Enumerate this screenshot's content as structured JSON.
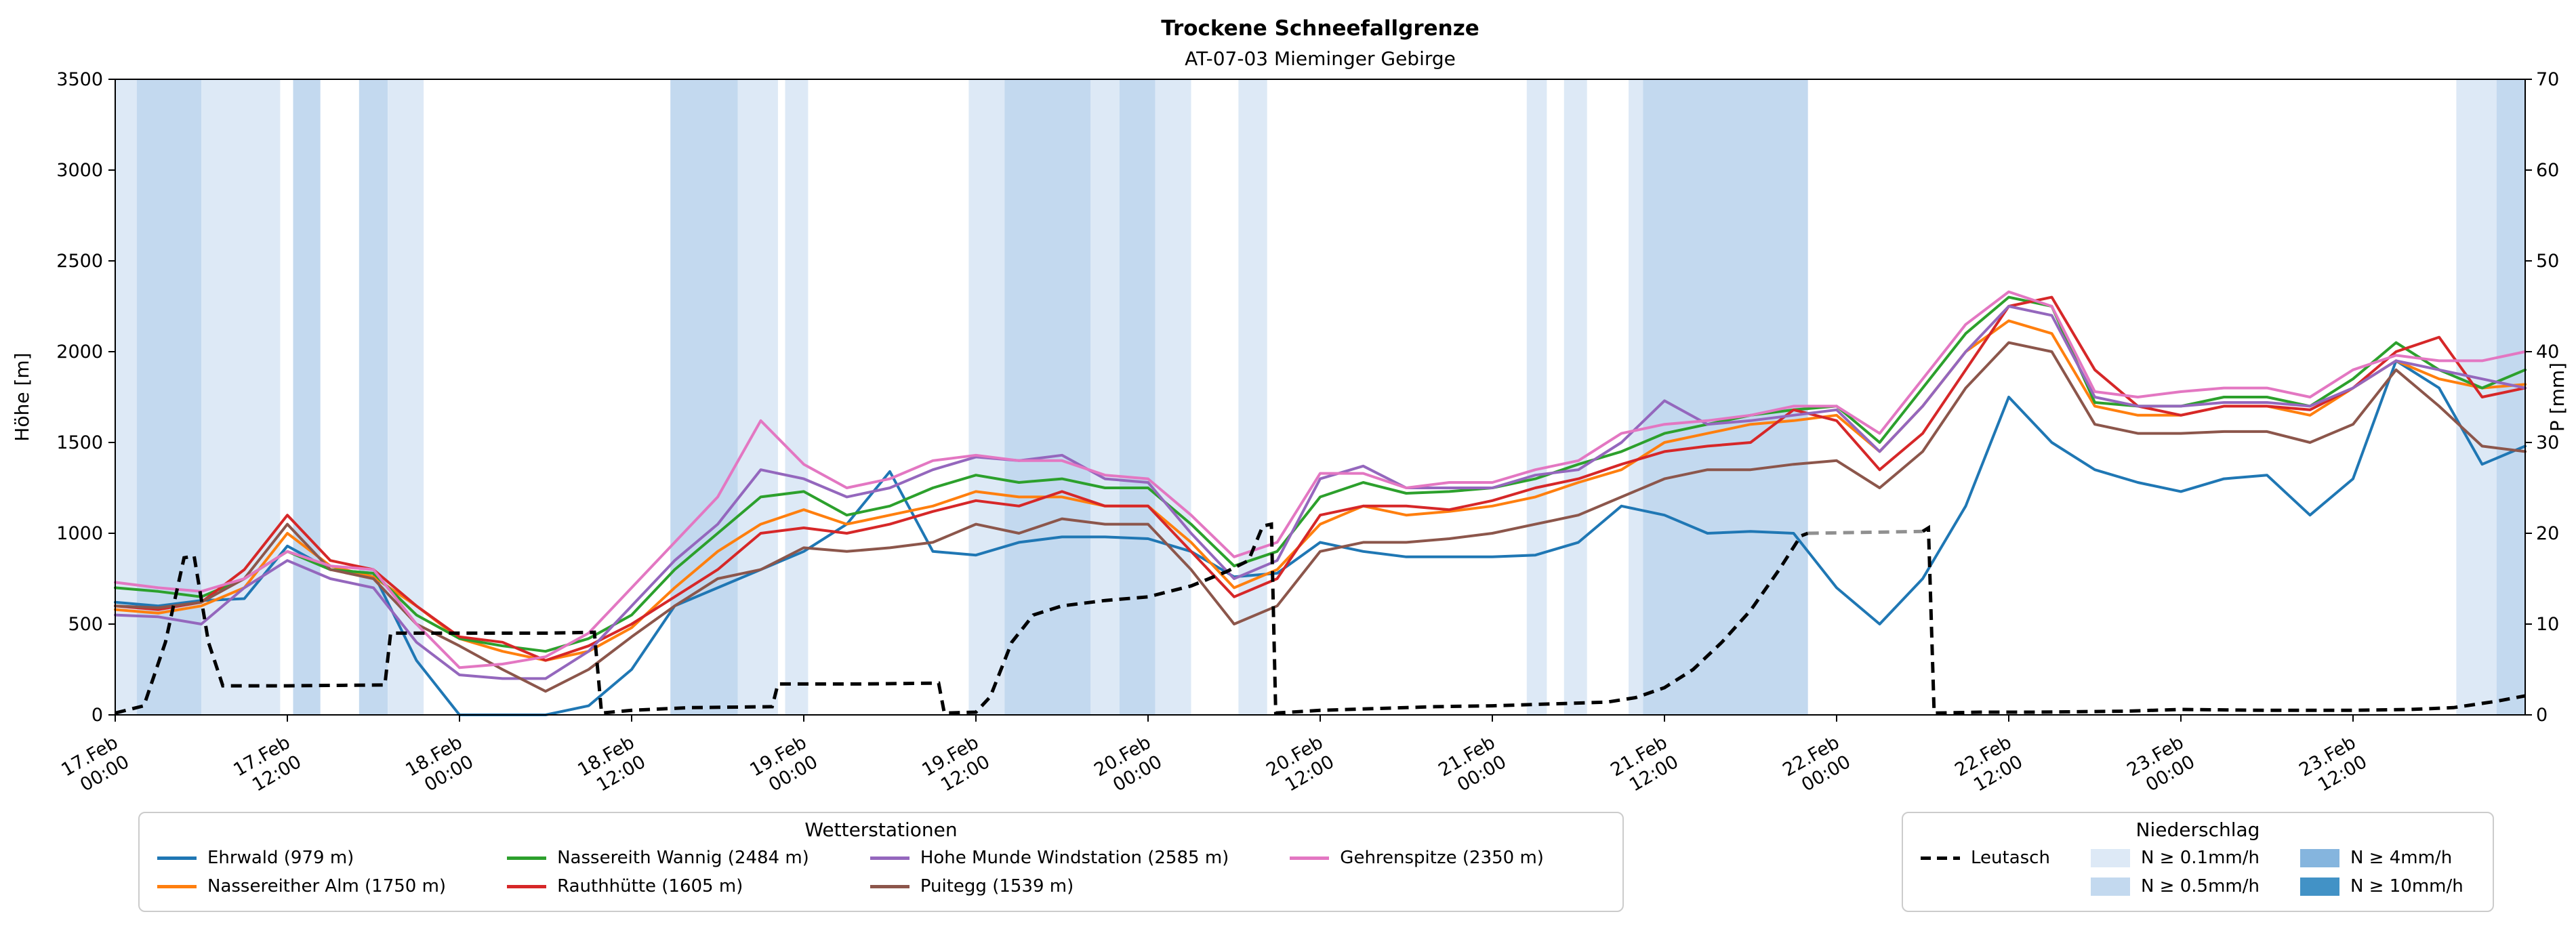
{
  "title": "Trockene Schneefallgrenze",
  "subtitle": "AT-07-03 Mieminger Gebirge",
  "axes": {
    "left_label": "Höhe [m]",
    "right_label": "P [mm]",
    "left_ticks": [
      "0",
      "500",
      "1000",
      "1500",
      "2000",
      "2500",
      "3000",
      "3500"
    ],
    "right_ticks": [
      "0",
      "10",
      "20",
      "30",
      "40",
      "50",
      "60",
      "70"
    ],
    "x_ticks": [
      {
        "t": 0,
        "date": "17.Feb",
        "time": "00:00"
      },
      {
        "t": 12,
        "date": "17.Feb",
        "time": "12:00"
      },
      {
        "t": 24,
        "date": "18.Feb",
        "time": "00:00"
      },
      {
        "t": 36,
        "date": "18.Feb",
        "time": "12:00"
      },
      {
        "t": 48,
        "date": "19.Feb",
        "time": "00:00"
      },
      {
        "t": 60,
        "date": "19.Feb",
        "time": "12:00"
      },
      {
        "t": 72,
        "date": "20.Feb",
        "time": "00:00"
      },
      {
        "t": 84,
        "date": "20.Feb",
        "time": "12:00"
      },
      {
        "t": 96,
        "date": "21.Feb",
        "time": "00:00"
      },
      {
        "t": 108,
        "date": "21.Feb",
        "time": "12:00"
      },
      {
        "t": 120,
        "date": "22.Feb",
        "time": "00:00"
      },
      {
        "t": 132,
        "date": "22.Feb",
        "time": "12:00"
      },
      {
        "t": 144,
        "date": "23.Feb",
        "time": "00:00"
      },
      {
        "t": 156,
        "date": "23.Feb",
        "time": "12:00"
      }
    ]
  },
  "legend_stations": {
    "title": "Wetterstationen"
  },
  "legend_precip": {
    "title": "Niederschlag",
    "leutasch_label": "Leutasch",
    "patches": [
      {
        "label": "N ≥ 0.1mm/h",
        "color": "#dde9f6"
      },
      {
        "label": "N ≥ 0.5mm/h",
        "color": "#c3d9ef"
      },
      {
        "label": "N ≥ 4mm/h",
        "color": "#85b5de"
      },
      {
        "label": "N ≥ 10mm/h",
        "color": "#4292c6"
      }
    ]
  },
  "chart_data": {
    "type": "line",
    "x_unit": "hours_since_17.Feb_00:00",
    "xlim_hours": [
      0,
      168
    ],
    "ylim_left": [
      0,
      3500
    ],
    "ylim_right": [
      0,
      70
    ],
    "grid": false,
    "x_hours": [
      0,
      3,
      6,
      9,
      12,
      15,
      18,
      21,
      24,
      27,
      30,
      33,
      36,
      39,
      42,
      45,
      48,
      51,
      54,
      57,
      60,
      63,
      66,
      69,
      72,
      75,
      78,
      81,
      84,
      87,
      90,
      93,
      96,
      99,
      102,
      105,
      108,
      111,
      114,
      117,
      120,
      123,
      126,
      129,
      132,
      135,
      138,
      141,
      144,
      147,
      150,
      153,
      156,
      159,
      162,
      165,
      168
    ],
    "series": [
      {
        "name": "Ehrwald (979 m)",
        "slug": "ehrwald",
        "color": "#1f77b4",
        "values": [
          620,
          600,
          630,
          640,
          930,
          800,
          780,
          300,
          0,
          0,
          0,
          50,
          250,
          600,
          700,
          800,
          900,
          1050,
          1340,
          900,
          880,
          950,
          980,
          980,
          970,
          900,
          760,
          780,
          950,
          900,
          870,
          870,
          870,
          880,
          950,
          1150,
          1100,
          1000,
          1010,
          1000,
          700,
          500,
          750,
          1150,
          1750,
          1500,
          1350,
          1280,
          1230,
          1300,
          1320,
          1100,
          1300,
          1950,
          1800,
          1380,
          1480
        ]
      },
      {
        "name": "Nassereither Alm (1750 m)",
        "slug": "nassereither-alm",
        "color": "#ff7f0e",
        "values": [
          580,
          560,
          600,
          700,
          1000,
          820,
          760,
          600,
          420,
          350,
          300,
          350,
          480,
          700,
          900,
          1050,
          1130,
          1050,
          1100,
          1150,
          1230,
          1200,
          1200,
          1150,
          1150,
          950,
          700,
          800,
          1050,
          1150,
          1100,
          1120,
          1150,
          1200,
          1280,
          1350,
          1500,
          1550,
          1600,
          1620,
          1650,
          1450,
          1700,
          2000,
          2170,
          2100,
          1700,
          1650,
          1650,
          1700,
          1700,
          1650,
          1800,
          1950,
          1850,
          1800,
          1820
        ]
      },
      {
        "name": "Nassereith Wannig (2484 m)",
        "slug": "nassereith-wannig",
        "color": "#2ca02c",
        "values": [
          700,
          680,
          650,
          750,
          900,
          800,
          780,
          550,
          420,
          380,
          350,
          420,
          550,
          800,
          1000,
          1200,
          1230,
          1100,
          1150,
          1250,
          1320,
          1280,
          1300,
          1250,
          1250,
          1050,
          820,
          900,
          1200,
          1280,
          1220,
          1230,
          1250,
          1300,
          1380,
          1450,
          1550,
          1600,
          1650,
          1680,
          1700,
          1500,
          1800,
          2100,
          2300,
          2250,
          1720,
          1700,
          1700,
          1750,
          1750,
          1700,
          1850,
          2050,
          1900,
          1800,
          1900
        ]
      },
      {
        "name": "Rauthhütte (1605 m)",
        "slug": "rauthhuette",
        "color": "#d62728",
        "values": [
          600,
          580,
          620,
          800,
          1100,
          850,
          800,
          600,
          430,
          400,
          300,
          380,
          500,
          650,
          800,
          1000,
          1030,
          1000,
          1050,
          1120,
          1180,
          1150,
          1230,
          1150,
          1150,
          900,
          650,
          750,
          1100,
          1150,
          1150,
          1130,
          1180,
          1250,
          1300,
          1380,
          1450,
          1480,
          1500,
          1680,
          1620,
          1350,
          1550,
          1900,
          2250,
          2300,
          1900,
          1700,
          1650,
          1700,
          1700,
          1680,
          1800,
          2000,
          2080,
          1750,
          1800
        ]
      },
      {
        "name": "Hohe Munde Windstation (2585 m)",
        "slug": "hohe-munde-windstation",
        "color": "#9467bd",
        "values": [
          550,
          540,
          500,
          700,
          850,
          750,
          700,
          400,
          220,
          200,
          200,
          350,
          600,
          850,
          1050,
          1350,
          1300,
          1200,
          1250,
          1350,
          1420,
          1400,
          1430,
          1300,
          1280,
          1000,
          750,
          850,
          1300,
          1370,
          1250,
          1250,
          1250,
          1320,
          1350,
          1500,
          1730,
          1600,
          1620,
          1650,
          1680,
          1450,
          1700,
          2000,
          2250,
          2200,
          1750,
          1700,
          1700,
          1720,
          1720,
          1700,
          1800,
          1950,
          1900,
          1850,
          1800
        ]
      },
      {
        "name": "Puitegg (1539 m)",
        "slug": "puitegg",
        "color": "#8c564b",
        "values": [
          600,
          590,
          620,
          750,
          1050,
          800,
          750,
          500,
          380,
          250,
          130,
          250,
          430,
          600,
          750,
          800,
          920,
          900,
          920,
          950,
          1050,
          1000,
          1080,
          1050,
          1050,
          800,
          500,
          600,
          900,
          950,
          950,
          970,
          1000,
          1050,
          1100,
          1200,
          1300,
          1350,
          1350,
          1380,
          1400,
          1250,
          1450,
          1800,
          2050,
          2000,
          1600,
          1550,
          1550,
          1560,
          1560,
          1500,
          1600,
          1900,
          1700,
          1480,
          1450
        ]
      },
      {
        "name": "Gehrenspitze (2350 m)",
        "slug": "gehrenspitze",
        "color": "#e377c2",
        "values": [
          730,
          700,
          680,
          750,
          900,
          820,
          800,
          500,
          260,
          280,
          320,
          450,
          700,
          950,
          1200,
          1620,
          1380,
          1250,
          1300,
          1400,
          1430,
          1400,
          1400,
          1320,
          1300,
          1100,
          870,
          950,
          1330,
          1330,
          1250,
          1280,
          1280,
          1350,
          1400,
          1550,
          1600,
          1620,
          1650,
          1700,
          1700,
          1550,
          1850,
          2150,
          2330,
          2250,
          1780,
          1750,
          1780,
          1800,
          1800,
          1750,
          1900,
          1980,
          1950,
          1950,
          2000
        ]
      }
    ],
    "leutasch": {
      "label": "Leutasch",
      "axis": "right",
      "style": "dashed",
      "segments": [
        {
          "color": "#000000",
          "points": [
            [
              0,
              0.2
            ],
            [
              2,
              1
            ],
            [
              3.5,
              8
            ],
            [
              4.8,
              17.3
            ],
            [
              5.5,
              17.5
            ],
            [
              6.5,
              8
            ],
            [
              7.5,
              3.2
            ],
            [
              12,
              3.2
            ],
            [
              18.8,
              3.3
            ],
            [
              19.2,
              9
            ],
            [
              24,
              9
            ],
            [
              30,
              9
            ],
            [
              33.4,
              9.1
            ],
            [
              33.9,
              0.2
            ],
            [
              36,
              0.5
            ],
            [
              40,
              0.8
            ],
            [
              45.8,
              0.9
            ],
            [
              46.2,
              3.4
            ],
            [
              52,
              3.4
            ],
            [
              57.4,
              3.5
            ],
            [
              57.8,
              0.2
            ],
            [
              60,
              0.3
            ],
            [
              61,
              2
            ],
            [
              62.5,
              8
            ],
            [
              64,
              11
            ],
            [
              66,
              12
            ],
            [
              69,
              12.6
            ],
            [
              72,
              13
            ],
            [
              75,
              14.2
            ],
            [
              77.5,
              15.8
            ],
            [
              79,
              17
            ],
            [
              80,
              20.8
            ],
            [
              80.6,
              21
            ],
            [
              80.9,
              0.2
            ],
            [
              84,
              0.5
            ],
            [
              88,
              0.7
            ],
            [
              92,
              0.9
            ],
            [
              96,
              1
            ],
            [
              100,
              1.2
            ],
            [
              104,
              1.4
            ],
            [
              106,
              1.9
            ],
            [
              108,
              3
            ],
            [
              110,
              5
            ],
            [
              112,
              8
            ],
            [
              114,
              11.5
            ],
            [
              116,
              16
            ],
            [
              117.5,
              19.7
            ],
            [
              118,
              20
            ]
          ]
        },
        {
          "color": "#909090",
          "points": [
            [
              118,
              20
            ],
            [
              126,
              20.2
            ]
          ]
        },
        {
          "color": "#000000",
          "points": [
            [
              126,
              20.2
            ],
            [
              126.4,
              20.6
            ],
            [
              126.8,
              0.2
            ],
            [
              130,
              0.3
            ],
            [
              134,
              0.3
            ],
            [
              140,
              0.4
            ],
            [
              144,
              0.6
            ],
            [
              150,
              0.5
            ],
            [
              156,
              0.5
            ],
            [
              160,
              0.6
            ],
            [
              163,
              0.8
            ],
            [
              166,
              1.5
            ],
            [
              168,
              2.1
            ]
          ]
        }
      ]
    },
    "band_colors": {
      "1": "#dde9f6",
      "2": "#c3d9ef",
      "3": "#85b5de",
      "4": "#4292c6"
    },
    "precip_bands": [
      {
        "from": 0,
        "to": 1.5,
        "level": 1
      },
      {
        "from": 1.5,
        "to": 6,
        "level": 2
      },
      {
        "from": 6,
        "to": 11.5,
        "level": 1
      },
      {
        "from": 12.4,
        "to": 14.3,
        "level": 2
      },
      {
        "from": 17,
        "to": 19,
        "level": 2
      },
      {
        "from": 19,
        "to": 21.5,
        "level": 1
      },
      {
        "from": 38.7,
        "to": 43.4,
        "level": 2
      },
      {
        "from": 43.4,
        "to": 46.2,
        "level": 1
      },
      {
        "from": 46.7,
        "to": 48.3,
        "level": 1
      },
      {
        "from": 59.5,
        "to": 62,
        "level": 1
      },
      {
        "from": 62,
        "to": 68,
        "level": 2
      },
      {
        "from": 68,
        "to": 70,
        "level": 1
      },
      {
        "from": 70,
        "to": 72.5,
        "level": 2
      },
      {
        "from": 72.5,
        "to": 75,
        "level": 1
      },
      {
        "from": 78.3,
        "to": 80.3,
        "level": 1
      },
      {
        "from": 98.4,
        "to": 99.8,
        "level": 1
      },
      {
        "from": 101,
        "to": 102.6,
        "level": 1
      },
      {
        "from": 105.5,
        "to": 106.5,
        "level": 1
      },
      {
        "from": 106.5,
        "to": 118,
        "level": 2
      },
      {
        "from": 163.2,
        "to": 166,
        "level": 1
      },
      {
        "from": 166,
        "to": 168,
        "level": 2
      }
    ]
  }
}
